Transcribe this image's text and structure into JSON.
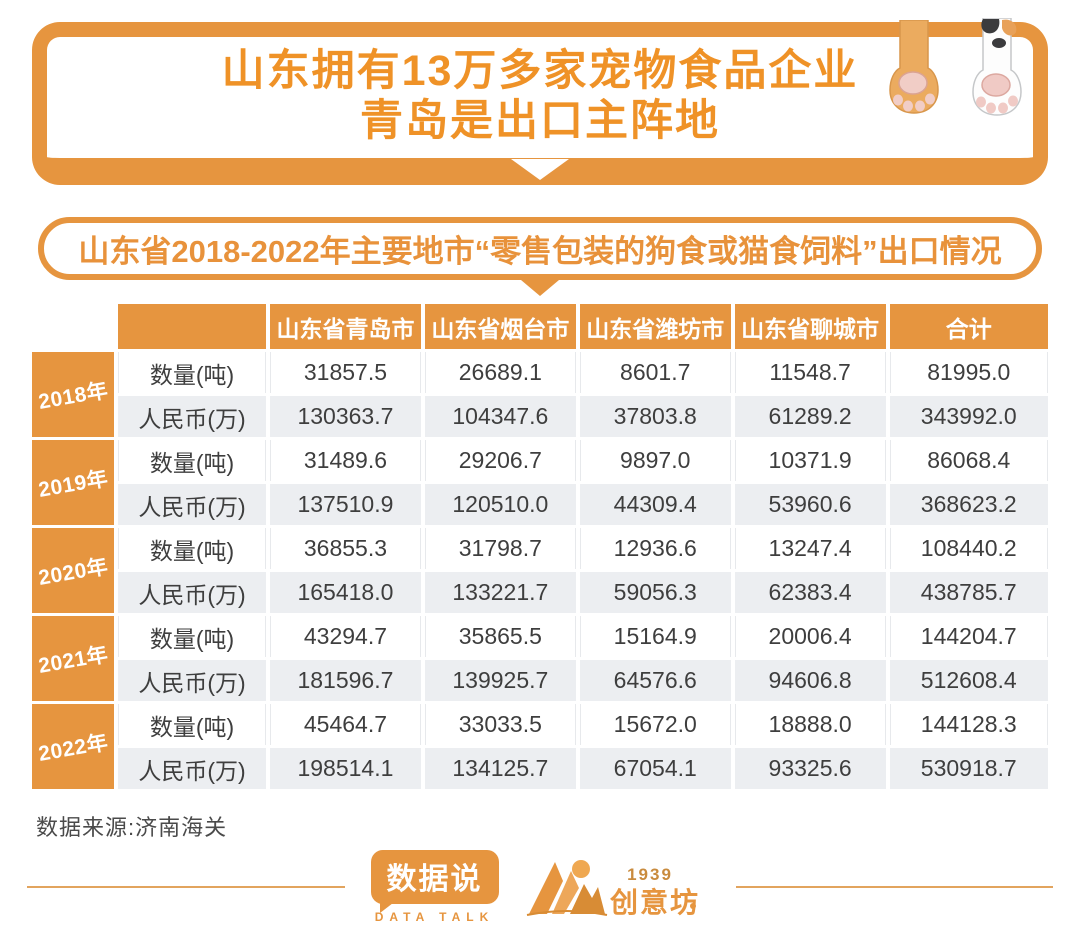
{
  "header": {
    "title_line1": "山东拥有13万多家宠物食品企业",
    "title_line2": "青岛是出口主阵地"
  },
  "subtitle": "山东省2018-2022年主要地市“零售包装的狗食或猫食饲料”出口情况",
  "chart_data": {
    "type": "table",
    "title": "山东省2018-2022年主要地市“零售包装的狗食或猫食饲料”出口情况",
    "columns": [
      "山东省青岛市",
      "山东省烟台市",
      "山东省潍坊市",
      "山东省聊城市",
      "合计"
    ],
    "row_labels": [
      "数量(吨)",
      "人民币(万)"
    ],
    "row_groups": [
      {
        "year": "2018年",
        "rows": [
          {
            "label": "数量(吨)",
            "values": [
              "31857.5",
              "26689.1",
              "8601.7",
              "11548.7",
              "81995.0"
            ]
          },
          {
            "label": "人民币(万)",
            "values": [
              "130363.7",
              "104347.6",
              "37803.8",
              "61289.2",
              "343992.0"
            ]
          }
        ]
      },
      {
        "year": "2019年",
        "rows": [
          {
            "label": "数量(吨)",
            "values": [
              "31489.6",
              "29206.7",
              "9897.0",
              "10371.9",
              "86068.4"
            ]
          },
          {
            "label": "人民币(万)",
            "values": [
              "137510.9",
              "120510.0",
              "44309.4",
              "53960.6",
              "368623.2"
            ]
          }
        ]
      },
      {
        "year": "2020年",
        "rows": [
          {
            "label": "数量(吨)",
            "values": [
              "36855.3",
              "31798.7",
              "12936.6",
              "13247.4",
              "108440.2"
            ]
          },
          {
            "label": "人民币(万)",
            "values": [
              "165418.0",
              "133221.7",
              "59056.3",
              "62383.4",
              "438785.7"
            ]
          }
        ]
      },
      {
        "year": "2021年",
        "rows": [
          {
            "label": "数量(吨)",
            "values": [
              "43294.7",
              "35865.5",
              "15164.9",
              "20006.4",
              "144204.7"
            ]
          },
          {
            "label": "人民币(万)",
            "values": [
              "181596.7",
              "139925.7",
              "64576.6",
              "94606.8",
              "512608.4"
            ]
          }
        ]
      },
      {
        "year": "2022年",
        "rows": [
          {
            "label": "数量(吨)",
            "values": [
              "45464.7",
              "33033.5",
              "15672.0",
              "18888.0",
              "144128.3"
            ]
          },
          {
            "label": "人民币(万)",
            "values": [
              "198514.1",
              "134125.7",
              "67054.1",
              "93325.6",
              "530918.7"
            ]
          }
        ]
      }
    ]
  },
  "footer": {
    "source": "数据来源:济南海关",
    "logo_datatalk": {
      "cn": "数据说",
      "en": "DATA TALK"
    },
    "logo_studio": {
      "year": "1939",
      "name": "创意坊"
    }
  },
  "icons": {
    "paw_left": "cat-paw-orange-icon",
    "paw_right": "cat-paw-calico-icon"
  },
  "colors": {
    "orange": "#E6953F",
    "title_orange": "#EF9227",
    "shaded_row": "#ECEEF1",
    "text_dark": "#3E3E3E"
  }
}
